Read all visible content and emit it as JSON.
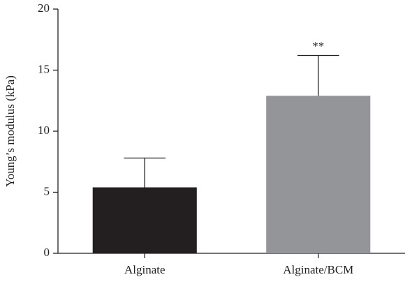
{
  "chart_data": {
    "type": "bar",
    "y_label": "Young’s modulus (kPa)",
    "categories": [
      "Alginate",
      "Alginate/BCM"
    ],
    "values": [
      5.4,
      12.9
    ],
    "errors": [
      2.4,
      3.3
    ],
    "colors": [
      "#231f20",
      "#939598"
    ],
    "ylim": [
      0,
      20
    ],
    "yticks": [
      0,
      5,
      10,
      15,
      20
    ],
    "annotations": [
      {
        "text": "**",
        "x": "Alginate/BCM"
      }
    ]
  }
}
